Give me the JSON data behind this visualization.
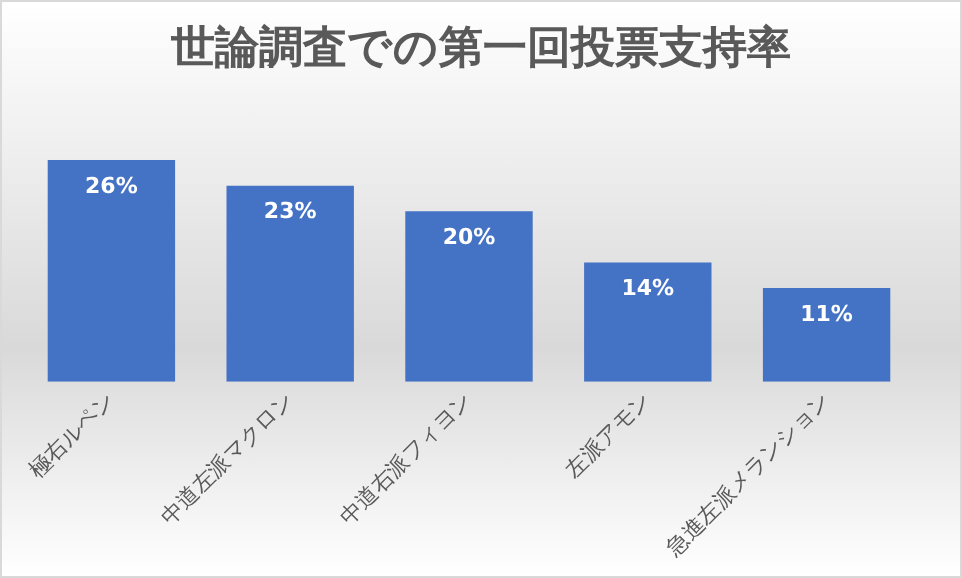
{
  "chart_data": {
    "type": "bar",
    "title": "世論調査での第一回投票支持率",
    "categories": [
      "極右ルペン",
      "中道左派マクロン",
      "中道右派フィヨン",
      "左派アモン",
      "急進左派メランション"
    ],
    "values": [
      26,
      23,
      20,
      14,
      11
    ],
    "value_labels": [
      "26%",
      "23%",
      "20%",
      "14%",
      "11%"
    ],
    "color": "#4472c4",
    "grid": false,
    "legend": false,
    "tick_labels": "x"
  }
}
